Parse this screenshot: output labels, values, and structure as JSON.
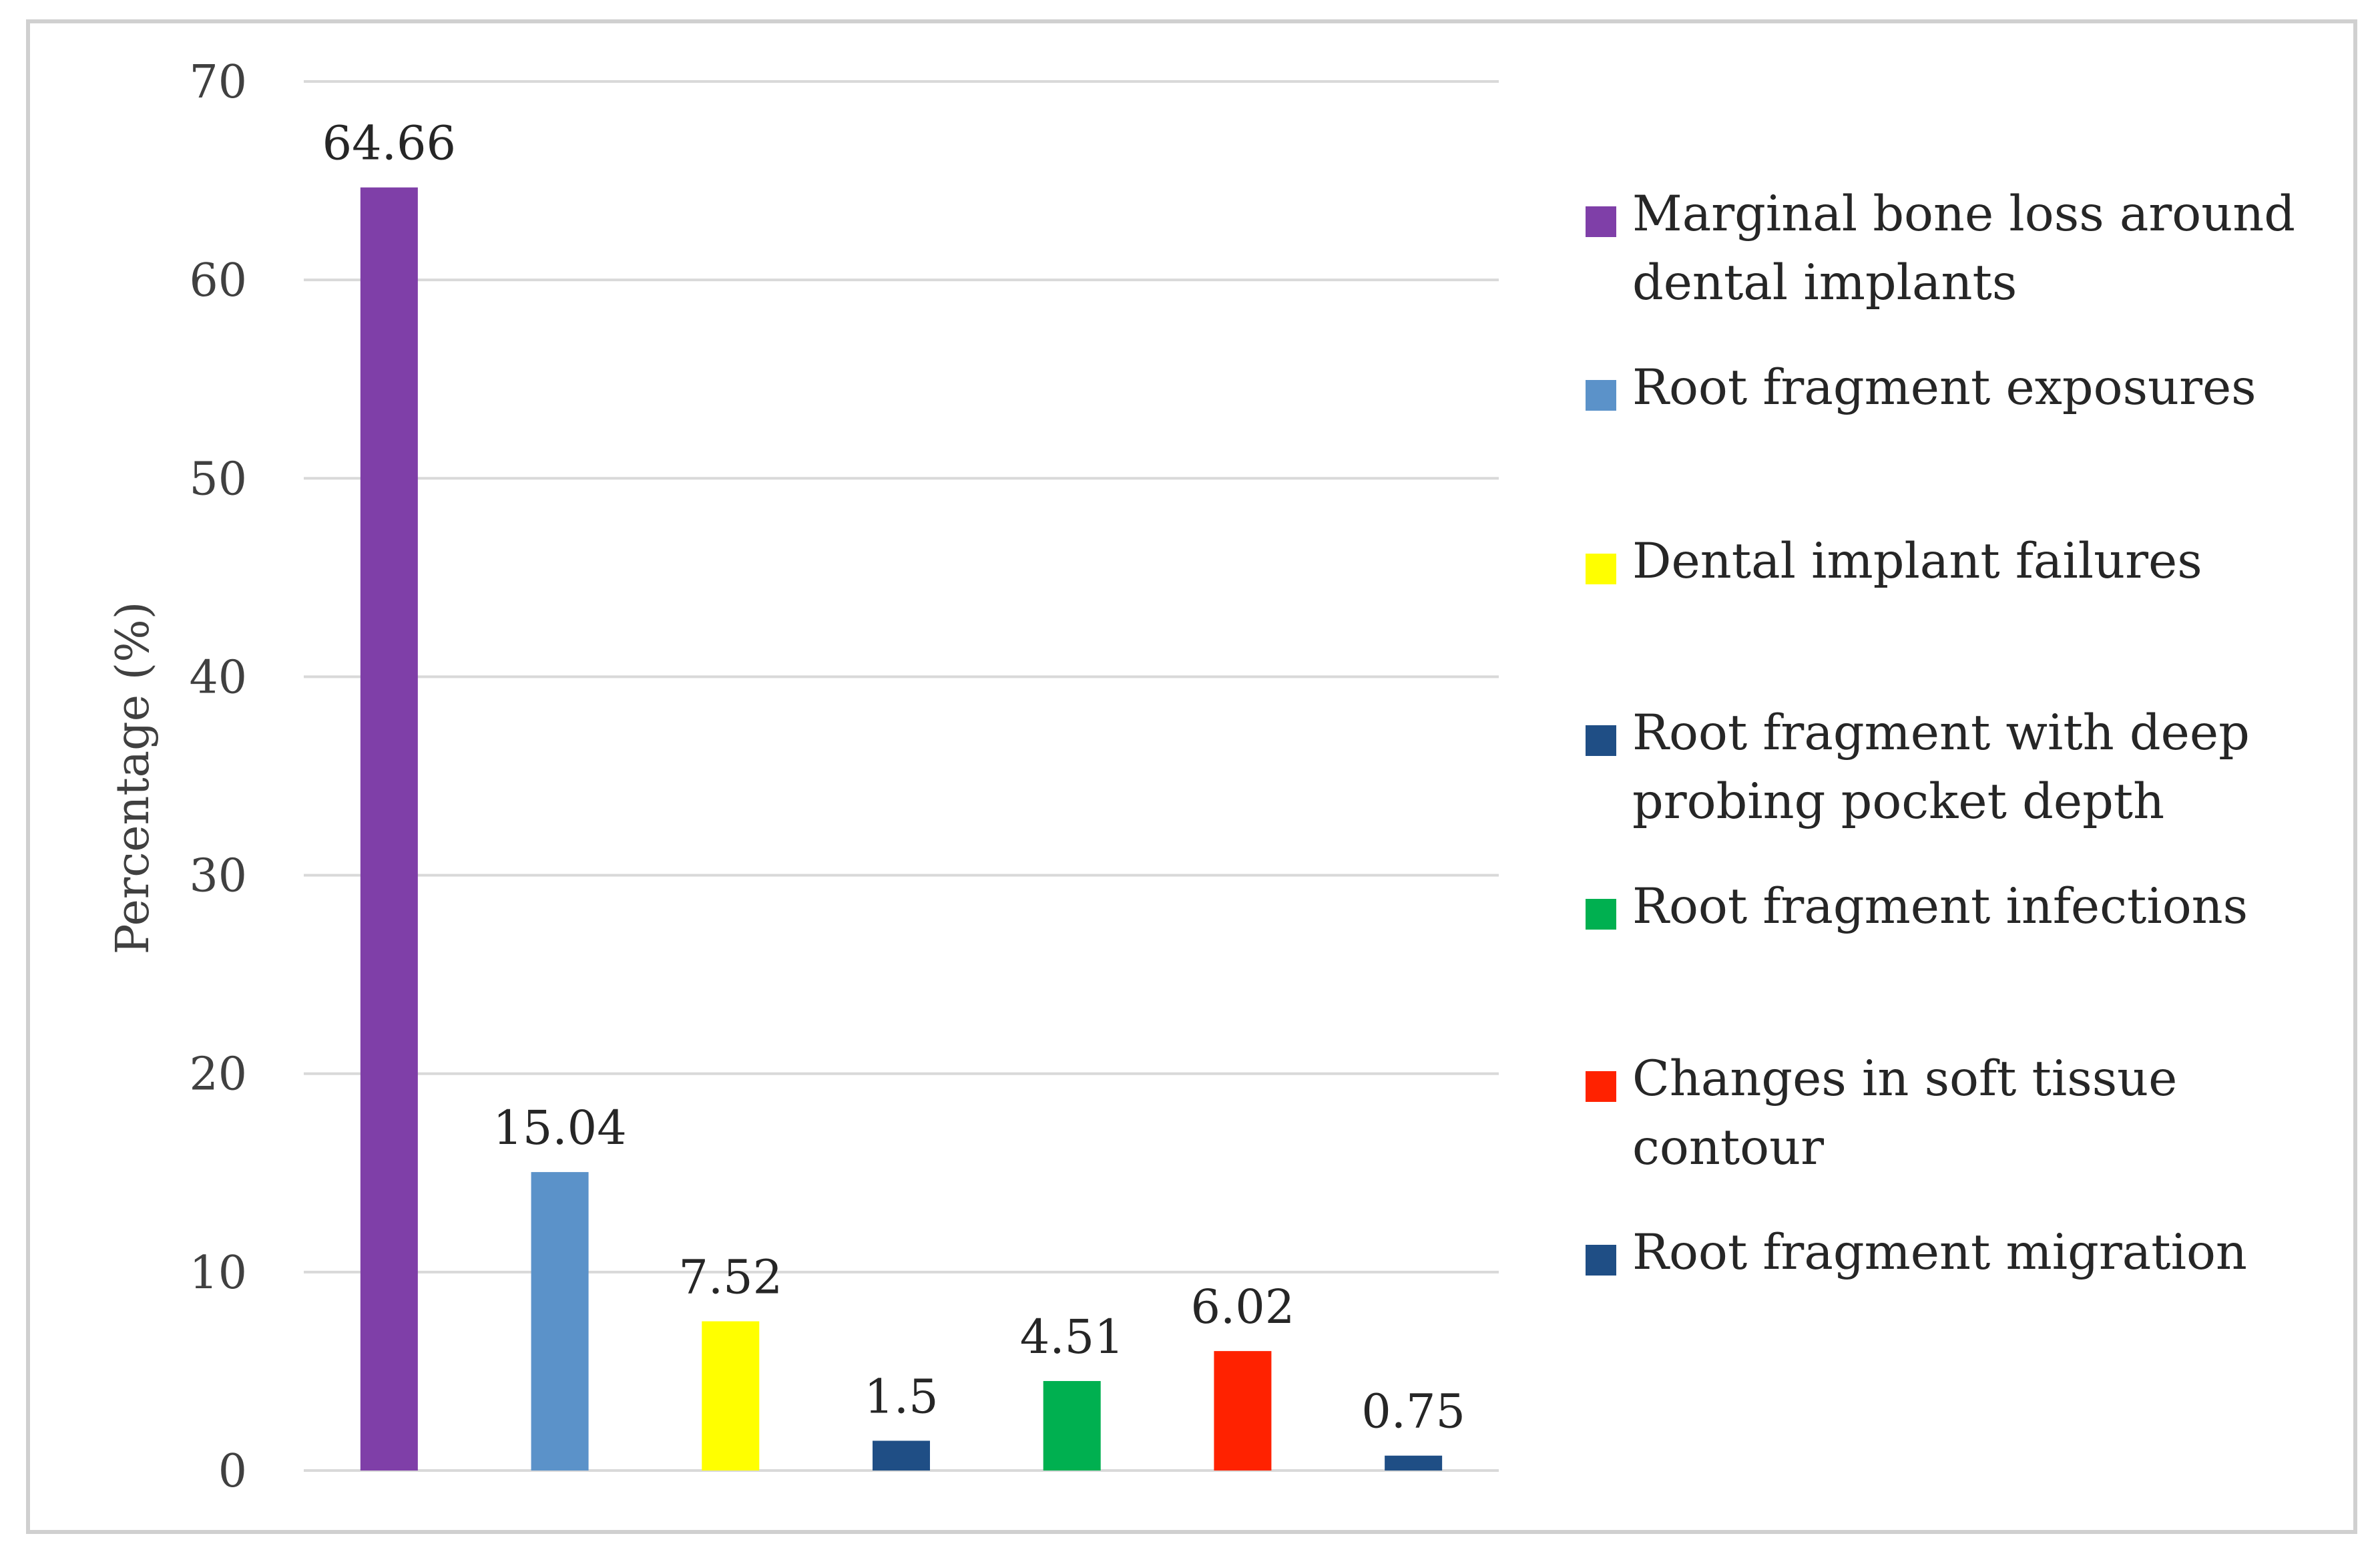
{
  "chart_data": {
    "type": "bar",
    "title": "",
    "xlabel": "",
    "ylabel": "Percentage (%)",
    "ylim": [
      0,
      70
    ],
    "yticks": [
      0,
      10,
      20,
      30,
      40,
      50,
      60,
      70
    ],
    "grid": true,
    "legend_position": "right",
    "categories": [
      "Marginal bone loss around dental implants",
      "Root fragment exposures",
      "Dental implant failures",
      "Root fragment with deep probing pocket depth",
      "Root fragment infections",
      "Changes in soft tissue contour",
      "Root fragment migration"
    ],
    "values": [
      64.66,
      15.04,
      7.52,
      1.5,
      4.51,
      6.02,
      0.75
    ],
    "value_labels": [
      "64.66",
      "15.04",
      "7.52",
      "1.5",
      "4.51",
      "6.02",
      "0.75"
    ],
    "colors": [
      "#7f3fa8",
      "#5b92c9",
      "#ffff00",
      "#1f4e85",
      "#00b050",
      "#ff2200",
      "#1f4e85"
    ],
    "legend": [
      {
        "lines": [
          "Marginal bone loss around",
          "dental implants"
        ],
        "color": "#7f3fa8"
      },
      {
        "lines": [
          "Root fragment exposures"
        ],
        "color": "#5b92c9"
      },
      {
        "lines": [
          "Dental implant failures"
        ],
        "color": "#ffff00"
      },
      {
        "lines": [
          "Root fragment with deep",
          "probing pocket depth"
        ],
        "color": "#1f4e85"
      },
      {
        "lines": [
          "Root fragment infections"
        ],
        "color": "#00b050"
      },
      {
        "lines": [
          "Changes in soft tissue",
          "contour"
        ],
        "color": "#ff2200"
      },
      {
        "lines": [
          "Root fragment migration"
        ],
        "color": "#1f4e85"
      }
    ]
  }
}
